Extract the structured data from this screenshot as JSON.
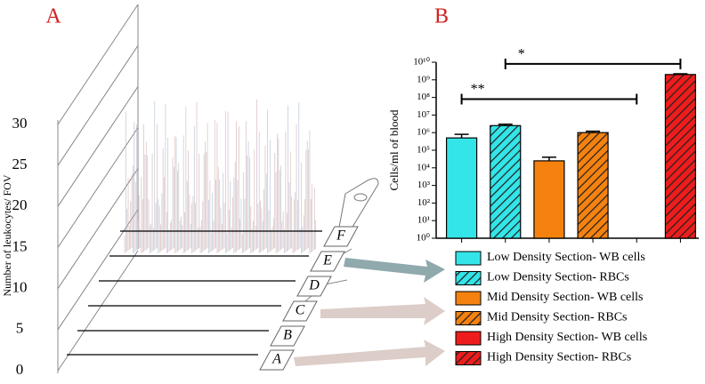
{
  "chart_data": [
    {
      "type": "lines3d",
      "panel": "A",
      "ylabel": "Number of leukocytes/ FOV",
      "ylim": [
        0,
        30
      ],
      "yticks": [
        0,
        5,
        10,
        15,
        20,
        25,
        30
      ],
      "sections": [
        "A",
        "B",
        "C",
        "D",
        "E",
        "F"
      ]
    },
    {
      "type": "bar",
      "panel": "B",
      "ylabel": "Cells/ml of blood",
      "log": true,
      "ylim": [
        1,
        10000000000
      ],
      "yticks": [
        {
          "value": 1,
          "label": "10⁰"
        },
        {
          "value": 10,
          "label": "10¹"
        },
        {
          "value": 100,
          "label": "10²"
        },
        {
          "value": 1000,
          "label": "10³"
        },
        {
          "value": 10000,
          "label": "10⁴"
        },
        {
          "value": 100000,
          "label": "10⁵"
        },
        {
          "value": 1000000,
          "label": "10⁶"
        },
        {
          "value": 10000000,
          "label": "10⁷"
        },
        {
          "value": 100000000,
          "label": "10⁸"
        },
        {
          "value": 1000000000,
          "label": "10⁹"
        },
        {
          "value": 10000000000,
          "label": "10¹⁰"
        }
      ],
      "categories": [
        null,
        null,
        null,
        null,
        null,
        null
      ],
      "series": [
        {
          "name": "Low Density Section- WB cells",
          "color": "#33e5e8",
          "hatch": false,
          "values": [
            500000,
            null,
            null,
            null,
            null,
            null
          ],
          "errors": [
            300000,
            null,
            null,
            null,
            null,
            null
          ]
        },
        {
          "name": "Low Density Section- RBCs",
          "color": "#33e5e8",
          "hatch": true,
          "values": [
            null,
            2500000,
            null,
            null,
            null,
            null
          ],
          "errors": [
            null,
            500000,
            null,
            null,
            null,
            null
          ]
        },
        {
          "name": "Mid Density Section- WB cells",
          "color": "#f5820f",
          "hatch": false,
          "values": [
            null,
            null,
            25000,
            null,
            null,
            null
          ],
          "errors": [
            null,
            null,
            15000,
            null,
            null,
            null
          ]
        },
        {
          "name": "Mid Density Section- RBCs",
          "color": "#f5820f",
          "hatch": true,
          "values": [
            null,
            null,
            null,
            1000000,
            null,
            null
          ],
          "errors": [
            null,
            null,
            null,
            200000,
            null,
            null
          ]
        },
        {
          "name": "High Density Section- WB cells",
          "color": "#ee1c1c",
          "hatch": false,
          "values": [
            null,
            null,
            null,
            null,
            null,
            null
          ],
          "errors": [
            null,
            null,
            null,
            null,
            null,
            null
          ]
        },
        {
          "name": "High Density Section- RBCs",
          "color": "#ee1c1c",
          "hatch": true,
          "values": [
            null,
            null,
            null,
            null,
            null,
            2000000000
          ],
          "errors": [
            null,
            null,
            null,
            null,
            null,
            200000000
          ]
        }
      ],
      "brackets": [
        {
          "label": "*",
          "from": 1,
          "to": 5,
          "y": 8000000000
        },
        {
          "label": "**",
          "from": 0,
          "to": 4,
          "y": 80000000
        }
      ]
    }
  ]
}
